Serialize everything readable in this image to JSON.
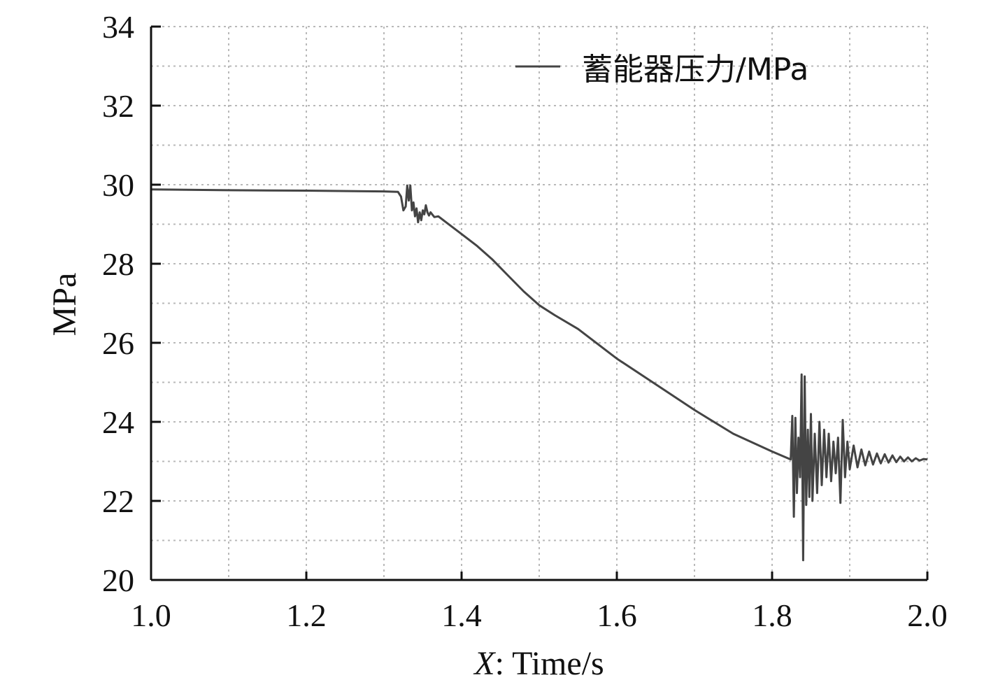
{
  "chart_data": {
    "type": "line",
    "title": "",
    "xlabel_var": "X",
    "xlabel_rest": ": Time/s",
    "ylabel": "MPa",
    "xlim": [
      1.0,
      2.0
    ],
    "ylim": [
      20,
      34
    ],
    "x_ticks": [
      1.0,
      1.2,
      1.4,
      1.6,
      1.8,
      2.0
    ],
    "x_tick_labels": [
      "1.0",
      "1.2",
      "1.4",
      "1.6",
      "1.8",
      "2.0"
    ],
    "y_ticks": [
      20,
      22,
      24,
      26,
      28,
      30,
      32,
      34
    ],
    "y_tick_labels": [
      "20",
      "22",
      "24",
      "26",
      "28",
      "30",
      "32",
      "34"
    ],
    "grid": true,
    "legend_position": "top-right",
    "series": [
      {
        "name": "蓄能器压力/MPa",
        "color": "#444444",
        "points": [
          [
            1.0,
            29.88
          ],
          [
            1.1,
            29.86
          ],
          [
            1.2,
            29.85
          ],
          [
            1.3,
            29.83
          ],
          [
            1.318,
            29.82
          ],
          [
            1.322,
            29.7
          ],
          [
            1.325,
            29.35
          ],
          [
            1.328,
            29.45
          ],
          [
            1.33,
            29.98
          ],
          [
            1.332,
            29.6
          ],
          [
            1.334,
            29.98
          ],
          [
            1.336,
            29.35
          ],
          [
            1.338,
            29.55
          ],
          [
            1.34,
            29.2
          ],
          [
            1.342,
            29.4
          ],
          [
            1.344,
            29.05
          ],
          [
            1.346,
            29.3
          ],
          [
            1.348,
            29.1
          ],
          [
            1.35,
            29.35
          ],
          [
            1.352,
            29.25
          ],
          [
            1.354,
            29.48
          ],
          [
            1.356,
            29.3
          ],
          [
            1.358,
            29.22
          ],
          [
            1.36,
            29.3
          ],
          [
            1.365,
            29.18
          ],
          [
            1.37,
            29.2
          ],
          [
            1.38,
            29.05
          ],
          [
            1.4,
            28.75
          ],
          [
            1.42,
            28.45
          ],
          [
            1.44,
            28.1
          ],
          [
            1.46,
            27.7
          ],
          [
            1.48,
            27.3
          ],
          [
            1.5,
            26.95
          ],
          [
            1.52,
            26.7
          ],
          [
            1.55,
            26.35
          ],
          [
            1.6,
            25.6
          ],
          [
            1.65,
            24.95
          ],
          [
            1.7,
            24.3
          ],
          [
            1.75,
            23.7
          ],
          [
            1.8,
            23.25
          ],
          [
            1.824,
            23.05
          ],
          [
            1.826,
            24.15
          ],
          [
            1.828,
            21.6
          ],
          [
            1.83,
            24.1
          ],
          [
            1.832,
            22.2
          ],
          [
            1.834,
            23.6
          ],
          [
            1.836,
            22.6
          ],
          [
            1.838,
            25.2
          ],
          [
            1.84,
            20.5
          ],
          [
            1.842,
            25.15
          ],
          [
            1.844,
            21.9
          ],
          [
            1.846,
            23.8
          ],
          [
            1.848,
            22.1
          ],
          [
            1.85,
            24.2
          ],
          [
            1.852,
            22.0
          ],
          [
            1.855,
            23.7
          ],
          [
            1.858,
            22.2
          ],
          [
            1.861,
            24.0
          ],
          [
            1.864,
            22.4
          ],
          [
            1.867,
            23.8
          ],
          [
            1.87,
            22.6
          ],
          [
            1.873,
            23.7
          ],
          [
            1.876,
            22.5
          ],
          [
            1.879,
            23.5
          ],
          [
            1.882,
            22.7
          ],
          [
            1.885,
            23.6
          ],
          [
            1.888,
            21.95
          ],
          [
            1.891,
            24.05
          ],
          [
            1.894,
            22.6
          ],
          [
            1.897,
            23.5
          ],
          [
            1.9,
            22.8
          ],
          [
            1.905,
            23.4
          ],
          [
            1.91,
            22.85
          ],
          [
            1.915,
            23.3
          ],
          [
            1.92,
            22.9
          ],
          [
            1.925,
            23.25
          ],
          [
            1.93,
            22.92
          ],
          [
            1.935,
            23.2
          ],
          [
            1.94,
            22.95
          ],
          [
            1.945,
            23.18
          ],
          [
            1.95,
            22.97
          ],
          [
            1.955,
            23.15
          ],
          [
            1.96,
            22.98
          ],
          [
            1.965,
            23.12
          ],
          [
            1.97,
            23.0
          ],
          [
            1.975,
            23.1
          ],
          [
            1.98,
            23.0
          ],
          [
            1.985,
            23.08
          ],
          [
            1.99,
            23.02
          ],
          [
            1.995,
            23.06
          ],
          [
            2.0,
            23.05
          ]
        ]
      }
    ]
  }
}
